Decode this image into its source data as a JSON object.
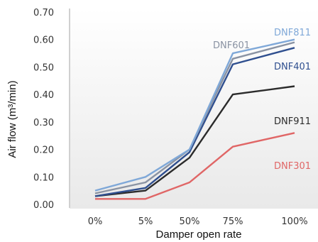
{
  "chart_data": {
    "type": "line",
    "xlabel": "Damper open rate",
    "ylabel": "Air flow (m³/min)",
    "categories": [
      "0%",
      "5%",
      "50%",
      "75%",
      "100%"
    ],
    "ylim": [
      0,
      0.7
    ],
    "yticks": [
      "0.00",
      "0.10",
      "0.20",
      "0.30",
      "0.40",
      "0.50",
      "0.60",
      "0.70"
    ],
    "grid": false,
    "series": [
      {
        "name": "DNF811",
        "color": "#7fa8d8",
        "values": [
          0.05,
          0.1,
          0.2,
          0.55,
          0.6
        ]
      },
      {
        "name": "DNF601",
        "color": "#8a93a3",
        "values": [
          0.04,
          0.08,
          0.2,
          0.53,
          0.59
        ]
      },
      {
        "name": "DNF401",
        "color": "#2f4f8f",
        "values": [
          0.03,
          0.06,
          0.19,
          0.51,
          0.57
        ]
      },
      {
        "name": "DNF911",
        "color": "#2b2b2b",
        "values": [
          0.03,
          0.05,
          0.17,
          0.4,
          0.43
        ]
      },
      {
        "name": "DNF301",
        "color": "#e06666",
        "values": [
          0.02,
          0.02,
          0.08,
          0.21,
          0.26
        ]
      }
    ]
  }
}
